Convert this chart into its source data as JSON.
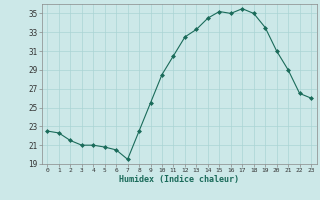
{
  "title": "",
  "xlabel": "Humidex (Indice chaleur)",
  "ylabel": "",
  "background_color": "#cce8e8",
  "plot_bg_color": "#cce8e8",
  "line_color": "#1a6b5a",
  "marker_color": "#1a6b5a",
  "grid_color": "#aad4d4",
  "ylim": [
    19,
    36
  ],
  "xlim": [
    -0.5,
    23.5
  ],
  "yticks": [
    19,
    21,
    23,
    25,
    27,
    29,
    31,
    33,
    35
  ],
  "xticks": [
    0,
    1,
    2,
    3,
    4,
    5,
    6,
    7,
    8,
    9,
    10,
    11,
    12,
    13,
    14,
    15,
    16,
    17,
    18,
    19,
    20,
    21,
    22,
    23
  ],
  "x": [
    0,
    1,
    2,
    3,
    4,
    5,
    6,
    7,
    8,
    9,
    10,
    11,
    12,
    13,
    14,
    15,
    16,
    17,
    18,
    19,
    20,
    21,
    22,
    23
  ],
  "y": [
    22.5,
    22.3,
    21.5,
    21.0,
    21.0,
    20.8,
    20.5,
    19.5,
    22.5,
    25.5,
    28.5,
    30.5,
    32.5,
    33.3,
    34.5,
    35.2,
    35.0,
    35.5,
    35.0,
    33.5,
    31.0,
    29.0,
    26.5,
    26.0
  ]
}
